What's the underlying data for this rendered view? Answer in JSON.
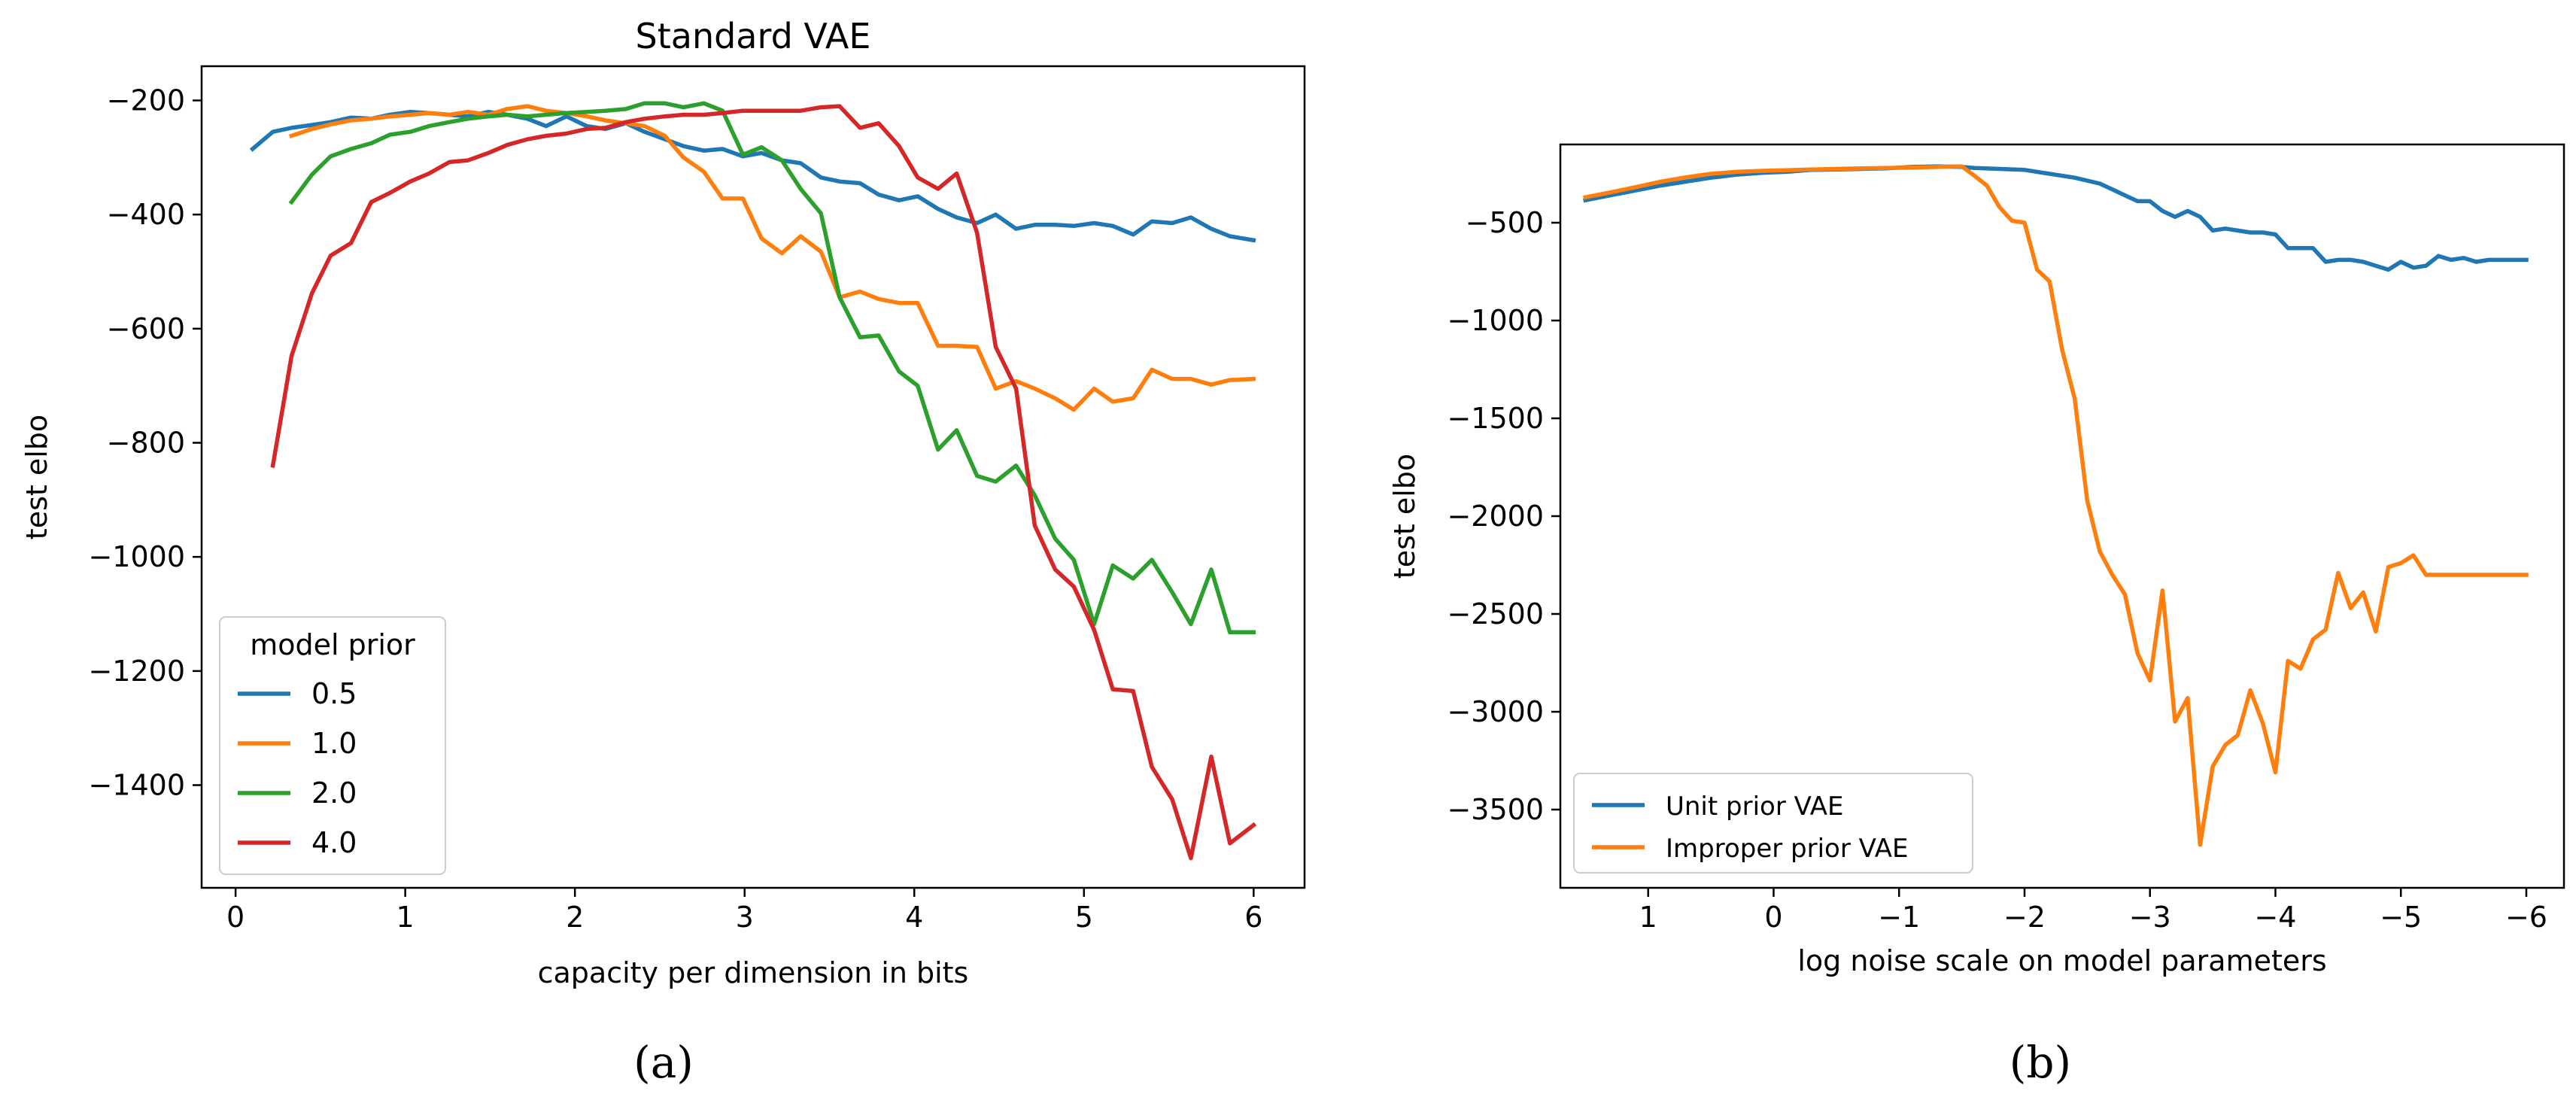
{
  "chart_data": [
    {
      "id": "a",
      "type": "line",
      "title": "Standard VAE",
      "xlabel": "capacity per dimension in bits",
      "ylabel": "test elbo",
      "xlim": [
        -0.2,
        6.3
      ],
      "ylim": [
        -1580,
        -140
      ],
      "xticks": [
        0,
        1,
        2,
        3,
        4,
        5,
        6
      ],
      "yticks": [
        -200,
        -400,
        -600,
        -800,
        -1000,
        -1200,
        -1400
      ],
      "xtick_labels": [
        "0",
        "1",
        "2",
        "3",
        "4",
        "5",
        "6"
      ],
      "ytick_labels": [
        "−200",
        "−400",
        "−600",
        "−800",
        "−1000",
        "−1200",
        "−1400"
      ],
      "grid": false,
      "legend": {
        "title": "model prior",
        "position": "lower-left"
      },
      "caption": "(a)",
      "series": [
        {
          "name": "0.5",
          "color": "#1f77b4",
          "x": [
            0.1,
            0.22,
            0.33,
            0.45,
            0.56,
            0.68,
            0.8,
            0.91,
            1.03,
            1.14,
            1.26,
            1.37,
            1.49,
            1.6,
            1.72,
            1.83,
            1.95,
            2.07,
            2.18,
            2.3,
            2.41,
            2.53,
            2.64,
            2.76,
            2.87,
            2.99,
            3.1,
            3.22,
            3.33,
            3.45,
            3.56,
            3.68,
            3.79,
            3.91,
            4.02,
            4.14,
            4.25,
            4.37,
            4.48,
            4.6,
            4.71,
            4.83,
            4.94,
            5.06,
            5.17,
            5.29,
            5.4,
            5.52,
            5.63,
            5.75,
            5.86,
            6.0
          ],
          "y": [
            -285,
            -255,
            -248,
            -243,
            -238,
            -230,
            -232,
            -225,
            -220,
            -222,
            -225,
            -228,
            -220,
            -225,
            -232,
            -245,
            -228,
            -245,
            -250,
            -240,
            -255,
            -268,
            -280,
            -288,
            -285,
            -298,
            -292,
            -305,
            -310,
            -335,
            -342,
            -345,
            -365,
            -375,
            -368,
            -390,
            -405,
            -415,
            -400,
            -425,
            -418,
            -418,
            -420,
            -415,
            -420,
            -435,
            -412,
            -415,
            -405,
            -425,
            -438,
            -445
          ]
        },
        {
          "name": "1.0",
          "color": "#ff7f0e",
          "x": [
            0.33,
            0.45,
            0.56,
            0.68,
            0.8,
            0.91,
            1.03,
            1.14,
            1.26,
            1.37,
            1.49,
            1.6,
            1.72,
            1.83,
            1.95,
            2.07,
            2.18,
            2.3,
            2.41,
            2.53,
            2.64,
            2.76,
            2.87,
            2.99,
            3.1,
            3.22,
            3.33,
            3.45,
            3.56,
            3.68,
            3.79,
            3.91,
            4.02,
            4.14,
            4.25,
            4.37,
            4.48,
            4.6,
            4.71,
            4.83,
            4.94,
            5.06,
            5.17,
            5.29,
            5.4,
            5.52,
            5.63,
            5.75,
            5.86,
            6.0
          ],
          "y": [
            -262,
            -250,
            -242,
            -235,
            -232,
            -228,
            -225,
            -222,
            -225,
            -220,
            -225,
            -215,
            -210,
            -218,
            -222,
            -228,
            -235,
            -240,
            -245,
            -262,
            -300,
            -325,
            -372,
            -372,
            -442,
            -468,
            -438,
            -465,
            -545,
            -535,
            -548,
            -555,
            -555,
            -630,
            -630,
            -632,
            -705,
            -692,
            -705,
            -722,
            -742,
            -705,
            -728,
            -722,
            -672,
            -688,
            -688,
            -698,
            -690,
            -688
          ]
        },
        {
          "name": "2.0",
          "color": "#2ca02c",
          "x": [
            0.33,
            0.45,
            0.56,
            0.68,
            0.8,
            0.91,
            1.03,
            1.14,
            1.26,
            1.37,
            1.49,
            1.6,
            1.72,
            1.83,
            1.95,
            2.07,
            2.18,
            2.3,
            2.41,
            2.53,
            2.64,
            2.76,
            2.87,
            2.99,
            3.1,
            3.22,
            3.33,
            3.45,
            3.56,
            3.68,
            3.79,
            3.91,
            4.02,
            4.14,
            4.25,
            4.37,
            4.48,
            4.6,
            4.71,
            4.83,
            4.94,
            5.06,
            5.17,
            5.29,
            5.4,
            5.52,
            5.63,
            5.75,
            5.86,
            6.0
          ],
          "y": [
            -378,
            -330,
            -298,
            -285,
            -275,
            -260,
            -255,
            -245,
            -238,
            -232,
            -228,
            -225,
            -228,
            -225,
            -222,
            -220,
            -218,
            -215,
            -205,
            -205,
            -212,
            -205,
            -218,
            -295,
            -282,
            -305,
            -355,
            -398,
            -545,
            -615,
            -612,
            -675,
            -700,
            -812,
            -778,
            -858,
            -868,
            -840,
            -892,
            -968,
            -1005,
            -1118,
            -1015,
            -1038,
            -1005,
            -1062,
            -1118,
            -1022,
            -1132,
            -1132
          ]
        },
        {
          "name": "4.0",
          "color": "#d62728",
          "x": [
            0.22,
            0.33,
            0.45,
            0.56,
            0.68,
            0.8,
            0.91,
            1.03,
            1.14,
            1.26,
            1.37,
            1.49,
            1.6,
            1.72,
            1.83,
            1.95,
            2.07,
            2.18,
            2.3,
            2.41,
            2.53,
            2.64,
            2.76,
            2.87,
            2.99,
            3.1,
            3.22,
            3.33,
            3.45,
            3.56,
            3.68,
            3.79,
            3.91,
            4.02,
            4.14,
            4.25,
            4.37,
            4.48,
            4.6,
            4.71,
            4.83,
            4.94,
            5.06,
            5.17,
            5.29,
            5.4,
            5.52,
            5.63,
            5.75,
            5.86,
            6.0
          ],
          "y": [
            -840,
            -648,
            -538,
            -472,
            -450,
            -378,
            -362,
            -342,
            -328,
            -308,
            -305,
            -292,
            -278,
            -268,
            -262,
            -258,
            -250,
            -248,
            -238,
            -232,
            -228,
            -225,
            -225,
            -222,
            -218,
            -218,
            -218,
            -218,
            -212,
            -210,
            -248,
            -240,
            -280,
            -335,
            -355,
            -328,
            -432,
            -632,
            -705,
            -945,
            -1022,
            -1052,
            -1128,
            -1232,
            -1235,
            -1368,
            -1425,
            -1528,
            -1350,
            -1502,
            -1470
          ]
        }
      ]
    },
    {
      "id": "b",
      "type": "line",
      "title": "",
      "xlabel": "log noise scale on model parameters",
      "ylabel": "test elbo",
      "xlim": [
        1.7,
        -6.3
      ],
      "ylim": [
        -3900,
        -100
      ],
      "xticks": [
        1,
        0,
        -1,
        -2,
        -3,
        -4,
        -5,
        -6
      ],
      "yticks": [
        -500,
        -1000,
        -1500,
        -2000,
        -2500,
        -3000,
        -3500
      ],
      "xtick_labels": [
        "1",
        "0",
        "−1",
        "−2",
        "−3",
        "−4",
        "−5",
        "−6"
      ],
      "ytick_labels": [
        "−500",
        "−1000",
        "−1500",
        "−2000",
        "−2500",
        "−3000",
        "−3500"
      ],
      "grid": false,
      "legend": {
        "title": "",
        "position": "lower-left"
      },
      "caption": "(b)",
      "series": [
        {
          "name": "Unit prior VAE",
          "color": "#1f77b4",
          "x": [
            1.5,
            1.3,
            1.1,
            0.9,
            0.7,
            0.5,
            0.3,
            0.1,
            -0.1,
            -0.3,
            -0.5,
            -0.7,
            -0.9,
            -1.1,
            -1.3,
            -1.5,
            -1.6,
            -1.8,
            -2.0,
            -2.2,
            -2.4,
            -2.6,
            -2.7,
            -2.8,
            -2.9,
            -3.0,
            -3.1,
            -3.2,
            -3.3,
            -3.4,
            -3.5,
            -3.6,
            -3.7,
            -3.8,
            -3.9,
            -4.0,
            -4.1,
            -4.2,
            -4.3,
            -4.4,
            -4.5,
            -4.6,
            -4.7,
            -4.8,
            -4.9,
            -5.0,
            -5.1,
            -5.2,
            -5.3,
            -5.4,
            -5.5,
            -5.6,
            -5.7,
            -5.8,
            -5.9,
            -6.0
          ],
          "y": [
            -385,
            -360,
            -335,
            -310,
            -290,
            -270,
            -255,
            -245,
            -240,
            -230,
            -228,
            -225,
            -222,
            -215,
            -212,
            -215,
            -220,
            -225,
            -230,
            -250,
            -270,
            -300,
            -330,
            -360,
            -390,
            -390,
            -440,
            -470,
            -440,
            -470,
            -540,
            -530,
            -540,
            -550,
            -550,
            -560,
            -630,
            -630,
            -630,
            -700,
            -690,
            -690,
            -700,
            -720,
            -740,
            -700,
            -730,
            -720,
            -670,
            -690,
            -680,
            -700,
            -690,
            -690,
            -690,
            -690
          ]
        },
        {
          "name": "Improper prior VAE",
          "color": "#ff7f0e",
          "x": [
            1.5,
            1.3,
            1.1,
            0.9,
            0.7,
            0.5,
            0.3,
            0.1,
            -0.1,
            -0.3,
            -0.5,
            -0.7,
            -0.9,
            -1.1,
            -1.3,
            -1.5,
            -1.6,
            -1.7,
            -1.8,
            -1.9,
            -2.0,
            -2.1,
            -2.2,
            -2.3,
            -2.4,
            -2.5,
            -2.6,
            -2.7,
            -2.8,
            -2.9,
            -3.0,
            -3.1,
            -3.2,
            -3.3,
            -3.4,
            -3.5,
            -3.6,
            -3.7,
            -3.8,
            -3.9,
            -4.0,
            -4.1,
            -4.2,
            -4.3,
            -4.4,
            -4.5,
            -4.6,
            -4.7,
            -4.8,
            -4.9,
            -5.0,
            -5.1,
            -5.2,
            -5.3,
            -5.4,
            -5.5,
            -5.6,
            -5.7,
            -5.8,
            -5.9,
            -6.0
          ],
          "y": [
            -370,
            -345,
            -318,
            -290,
            -268,
            -250,
            -240,
            -235,
            -232,
            -228,
            -225,
            -222,
            -220,
            -218,
            -215,
            -212,
            -260,
            -310,
            -420,
            -490,
            -500,
            -740,
            -800,
            -1150,
            -1400,
            -1920,
            -2180,
            -2300,
            -2400,
            -2700,
            -2840,
            -2380,
            -3050,
            -2930,
            -3680,
            -3280,
            -3170,
            -3120,
            -2890,
            -3060,
            -3310,
            -2740,
            -2780,
            -2630,
            -2580,
            -2290,
            -2470,
            -2390,
            -2590,
            -2260,
            -2240,
            -2200,
            -2300,
            -2300,
            -2300,
            -2300,
            -2300,
            -2300,
            -2300,
            -2300,
            -2300
          ]
        }
      ]
    }
  ]
}
